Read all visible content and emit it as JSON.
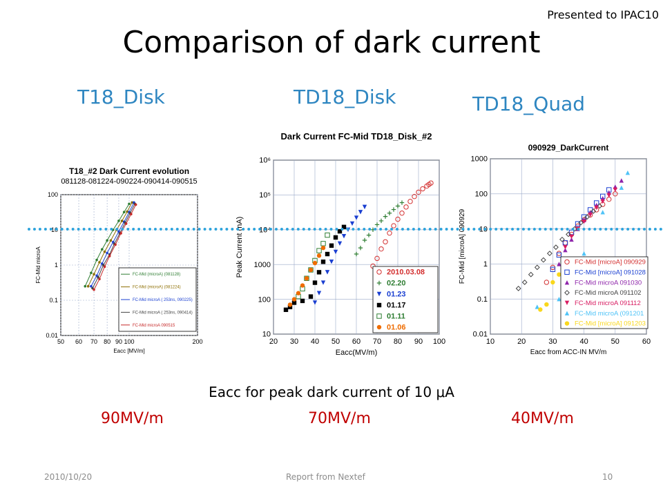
{
  "slide": {
    "title": "Comparison of dark current",
    "presented": "Presented to IPAC10",
    "caption": "Eacc for peak dark current of 10 μA",
    "footer_date": "2010/10/20",
    "footer_center": "Report from Nextef",
    "page_number": "10",
    "accent_color": "#2e86c1",
    "result_color": "#c00000",
    "line_color": "#2ea3dc"
  },
  "panels": [
    {
      "label": "T18_Disk",
      "result": "90MV/m"
    },
    {
      "label": "TD18_Disk",
      "result": "70MV/m"
    },
    {
      "label": "TD18_Quad",
      "result": "40MV/m"
    }
  ],
  "chart_data": [
    {
      "type": "scatter",
      "title": "T18_#2  Dark Current evolution",
      "subtitle": "081128-081224-090224-090414-090515",
      "xlabel": "Eacc  [MV/m]",
      "ylabel": "FC-Mid  microA",
      "xscale": "log",
      "yscale": "log",
      "xlim": [
        50,
        200
      ],
      "ylim": [
        0.01,
        100
      ],
      "xticks": [
        "50",
        "60",
        "70",
        "80",
        "90",
        "100",
        "200"
      ],
      "yticks": [
        "0.01",
        "0.1",
        "1",
        "10",
        "100"
      ],
      "legend_position": "bottom-right",
      "series": [
        {
          "name": "FC-Mid (microA) (081128)",
          "color": "#2e7d32",
          "x": [
            64,
            68,
            72,
            76,
            80,
            85,
            90,
            95,
            100
          ],
          "y": [
            0.25,
            0.6,
            1.4,
            2.8,
            5,
            10,
            18,
            32,
            55
          ]
        },
        {
          "name": "FC-Mid (microA) (081224)",
          "color": "#8d6e00",
          "x": [
            66,
            70,
            74,
            78,
            83,
            88,
            93,
            98,
            103
          ],
          "y": [
            0.25,
            0.55,
            1.2,
            2.4,
            5,
            10,
            18,
            33,
            60
          ]
        },
        {
          "name": "FC-Mid  microA  ( 253ns, 090225)",
          "color": "#1a3fd1",
          "x": [
            68,
            72,
            76,
            80,
            85,
            90,
            95,
            100,
            105
          ],
          "y": [
            0.25,
            0.5,
            1.1,
            2.2,
            4.5,
            9,
            17,
            32,
            60
          ]
        },
        {
          "name": "FC-Mid  microA  ( 253ns, 090414)",
          "color": "#424242",
          "x": [
            69,
            73,
            77,
            82,
            86,
            91,
            96,
            101,
            106
          ],
          "y": [
            0.22,
            0.45,
            1,
            2,
            4,
            8,
            16,
            30,
            55
          ]
        },
        {
          "name": "FC-Mid  microA  090515",
          "color": "#c62828",
          "x": [
            70,
            74,
            78,
            82,
            87,
            92,
            97,
            102,
            107
          ],
          "y": [
            0.2,
            0.4,
            0.9,
            1.8,
            3.8,
            8,
            15,
            28,
            52
          ]
        }
      ]
    },
    {
      "type": "scatter",
      "title": "Dark Current FC-Mid  TD18_Disk_#2",
      "xlabel": "Eacc(MV/m)",
      "ylabel": "Peak Current (nA)",
      "yscale": "log",
      "xlim": [
        20,
        100
      ],
      "ylim": [
        10,
        1000000
      ],
      "xticks": [
        "20",
        "30",
        "40",
        "50",
        "60",
        "70",
        "80",
        "90",
        "100"
      ],
      "yticks": [
        "10",
        "100",
        "1000",
        "10⁴",
        "10⁵",
        "10⁶"
      ],
      "legend_position": "bottom-right",
      "series": [
        {
          "name": "2010.03.08",
          "color": "#d32f2f",
          "marker": "open-circle",
          "x": [
            68,
            70,
            72,
            74,
            76,
            78,
            80,
            82,
            84,
            86,
            88,
            90,
            92,
            94,
            95,
            96
          ],
          "y": [
            900,
            1500,
            2800,
            4500,
            8000,
            13000,
            20000,
            30000,
            45000,
            65000,
            90000,
            120000,
            150000,
            180000,
            200000,
            220000
          ]
        },
        {
          "name": "02.20",
          "color": "#2e7d32",
          "marker": "plus",
          "x": [
            60,
            62,
            64,
            66,
            68,
            70,
            72,
            74,
            76,
            78,
            80,
            82
          ],
          "y": [
            2000,
            3000,
            5000,
            7000,
            10000,
            14000,
            18000,
            24000,
            30000,
            38000,
            48000,
            60000
          ]
        },
        {
          "name": "01.23",
          "color": "#1a3fd1",
          "marker": "triangle-down",
          "x": [
            40,
            42,
            44,
            46,
            48,
            50,
            52,
            54,
            56,
            58,
            60,
            62,
            64
          ],
          "y": [
            80,
            150,
            300,
            600,
            1200,
            2300,
            4000,
            6500,
            10000,
            15000,
            22000,
            32000,
            45000
          ]
        },
        {
          "name": "01.17",
          "color": "#000000",
          "marker": "square",
          "x": [
            26,
            28,
            30,
            34,
            38,
            40,
            42,
            44,
            46,
            48,
            50,
            52,
            54
          ],
          "y": [
            50,
            60,
            80,
            90,
            120,
            300,
            600,
            1200,
            2000,
            3500,
            6000,
            9000,
            12000
          ]
        },
        {
          "name": "01.11",
          "color": "#2e7d32",
          "marker": "open-square",
          "x": [
            32,
            34,
            36,
            38,
            40,
            42,
            44,
            46
          ],
          "y": [
            120,
            200,
            400,
            700,
            1300,
            2500,
            4000,
            7000
          ]
        },
        {
          "name": "01.06",
          "color": "#ef6c00",
          "marker": "circle",
          "x": [
            28,
            30,
            32,
            34,
            36,
            38,
            40,
            42,
            44
          ],
          "y": [
            70,
            100,
            150,
            250,
            400,
            700,
            1100,
            1800,
            3000
          ]
        }
      ]
    },
    {
      "type": "scatter",
      "title": "090929_DarkCurrent",
      "xlabel": "Eacc from ACC-IN  MV/m",
      "ylabel": "FC-Mid [microA] 090929",
      "yscale": "log",
      "xlim": [
        10,
        60
      ],
      "ylim": [
        0.01,
        1000
      ],
      "xticks": [
        "10",
        "20",
        "30",
        "40",
        "50",
        "60"
      ],
      "yticks": [
        "0.01",
        "0.1",
        "1",
        "10",
        "100",
        "1000"
      ],
      "legend_position": "bottom-right",
      "series": [
        {
          "name": "FC-Mid [microA]  090929",
          "color": "#d32f2f",
          "marker": "open-circle",
          "x": [
            28,
            30,
            32,
            34,
            36,
            38,
            40,
            42,
            44,
            46,
            48,
            50
          ],
          "y": [
            0.3,
            0.8,
            2,
            4,
            7,
            12,
            18,
            25,
            35,
            50,
            70,
            100
          ]
        },
        {
          "name": "FC-Mid [microA]  091028",
          "color": "#1a3fd1",
          "marker": "open-square",
          "x": [
            30,
            32,
            34,
            36,
            38,
            40,
            42,
            44,
            46,
            48
          ],
          "y": [
            0.7,
            1.8,
            4,
            8,
            14,
            22,
            35,
            55,
            85,
            130
          ]
        },
        {
          "name": "FC-Mid  microA  091030",
          "color": "#8e24aa",
          "marker": "triangle-up",
          "x": [
            32,
            34,
            36,
            38,
            40,
            42,
            44,
            46,
            48,
            50,
            52
          ],
          "y": [
            1,
            2.5,
            5,
            10,
            18,
            30,
            48,
            75,
            110,
            160,
            240
          ]
        },
        {
          "name": "FC-Mid  microA  091102",
          "color": "#424242",
          "marker": "open-diamond",
          "x": [
            19,
            21,
            23,
            25,
            27,
            29,
            31,
            33,
            35,
            37,
            39,
            41,
            43,
            45
          ],
          "y": [
            0.2,
            0.3,
            0.5,
            0.8,
            1.3,
            2,
            3,
            5,
            7,
            10,
            15,
            22,
            32,
            45
          ]
        },
        {
          "name": "FC-Mid  microA  091112",
          "color": "#d81b60",
          "marker": "triangle-down",
          "x": [
            34,
            36,
            38,
            40,
            42,
            44,
            46,
            48,
            50
          ],
          "y": [
            3,
            6,
            10,
            16,
            25,
            40,
            60,
            90,
            130
          ]
        },
        {
          "name": "FC-Mid  microA  (091201",
          "color": "#4fc3f7",
          "marker": "triangle-up",
          "x": [
            25,
            32,
            40,
            46,
            52,
            54
          ],
          "y": [
            0.06,
            0.1,
            2,
            30,
            150,
            400
          ]
        },
        {
          "name": "FC-Mid [microA] 091203",
          "color": "#f9d71c",
          "marker": "circle",
          "x": [
            26,
            28,
            30,
            32
          ],
          "y": [
            0.05,
            0.07,
            0.3,
            0.5
          ]
        }
      ]
    }
  ]
}
